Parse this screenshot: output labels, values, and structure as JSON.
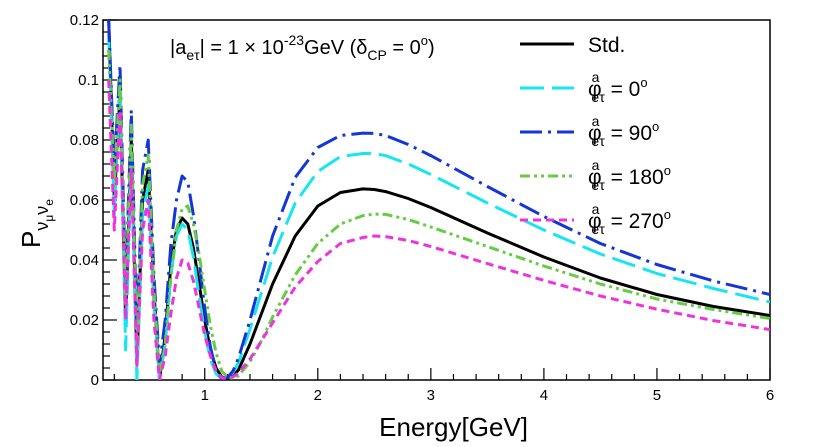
{
  "chart_data": {
    "type": "line",
    "title": "",
    "annotation": {
      "text": "|a",
      "sub1": "eτ",
      "mid": "| = 1 × 10",
      "sup": "-23",
      "unit": "GeV (δ",
      "sub2": "CP",
      "tail": " = 0",
      "deg": "o",
      "close": ")"
    },
    "xlabel": "Energy[GeV]",
    "ylabel": {
      "base": "P",
      "sub1": "ν",
      "subsub1": "μ",
      "sub2": "ν",
      "subsub2": "e"
    },
    "xlim": [
      0.1,
      6
    ],
    "ylim": [
      0,
      0.12
    ],
    "xticks": [
      1,
      2,
      3,
      4,
      5,
      6
    ],
    "xtick_labels": [
      "1",
      "2",
      "3",
      "4",
      "5",
      "6"
    ],
    "yticks": [
      0,
      0.02,
      0.04,
      0.06,
      0.08,
      0.1,
      0.12
    ],
    "ytick_labels": [
      "0",
      "0.02",
      "0.04",
      "0.06",
      "0.08",
      "0.1",
      "0.12"
    ],
    "legend_position": "top-right",
    "series": [
      {
        "name": "Std.",
        "legend_base": "Std.",
        "legend_sup": "",
        "legend_sub": "",
        "legend_value": "",
        "legend_deg": "",
        "color": "#000000",
        "dash": "",
        "x": [
          0.15,
          0.2,
          0.25,
          0.3,
          0.35,
          0.4,
          0.45,
          0.5,
          0.55,
          0.6,
          0.65,
          0.7,
          0.75,
          0.8,
          0.85,
          0.9,
          0.95,
          1.0,
          1.05,
          1.1,
          1.15,
          1.2,
          1.25,
          1.3,
          1.4,
          1.5,
          1.6,
          1.8,
          2.0,
          2.2,
          2.4,
          2.5,
          2.6,
          2.8,
          3.0,
          3.5,
          4.0,
          4.5,
          5.0,
          5.5,
          6.0
        ],
        "y": [
          0.12,
          0.06,
          0.095,
          0.02,
          0.08,
          0.005,
          0.06,
          0.07,
          0.03,
          0.0,
          0.015,
          0.038,
          0.05,
          0.054,
          0.052,
          0.044,
          0.032,
          0.02,
          0.01,
          0.004,
          0.001,
          0.0005,
          0.0012,
          0.0035,
          0.012,
          0.022,
          0.032,
          0.048,
          0.058,
          0.0625,
          0.0637,
          0.0635,
          0.0628,
          0.0605,
          0.0575,
          0.049,
          0.041,
          0.034,
          0.0285,
          0.0245,
          0.0215
        ]
      },
      {
        "name": "phi0",
        "legend_base": "φ",
        "legend_sup": "a",
        "legend_sub": "eτ",
        "legend_value": " = 0",
        "legend_deg": "o",
        "color": "#17e6f0",
        "dash": "24,8",
        "x": [
          0.15,
          0.2,
          0.25,
          0.3,
          0.35,
          0.4,
          0.45,
          0.5,
          0.55,
          0.6,
          0.65,
          0.7,
          0.75,
          0.8,
          0.85,
          0.9,
          0.95,
          1.0,
          1.05,
          1.1,
          1.15,
          1.2,
          1.25,
          1.3,
          1.4,
          1.5,
          1.6,
          1.8,
          2.0,
          2.2,
          2.4,
          2.5,
          2.6,
          2.8,
          3.0,
          3.5,
          4.0,
          4.5,
          5.0,
          5.5,
          6.0
        ],
        "y": [
          0.115,
          0.055,
          0.1,
          0.01,
          0.075,
          0.0,
          0.055,
          0.065,
          0.025,
          0.0,
          0.012,
          0.035,
          0.048,
          0.052,
          0.05,
          0.041,
          0.028,
          0.016,
          0.007,
          0.002,
          0.0005,
          0.0008,
          0.0025,
          0.006,
          0.017,
          0.029,
          0.041,
          0.059,
          0.0695,
          0.0745,
          0.0755,
          0.0755,
          0.0748,
          0.072,
          0.0685,
          0.059,
          0.05,
          0.042,
          0.0355,
          0.0305,
          0.026
        ]
      },
      {
        "name": "phi90",
        "legend_base": "φ",
        "legend_sup": "a",
        "legend_sub": "eτ",
        "legend_value": " = 90",
        "legend_deg": "o",
        "color": "#1536d6",
        "dash": "22,6,3,6",
        "x": [
          0.15,
          0.2,
          0.25,
          0.3,
          0.35,
          0.4,
          0.45,
          0.5,
          0.55,
          0.6,
          0.65,
          0.7,
          0.75,
          0.8,
          0.85,
          0.9,
          0.95,
          1.0,
          1.05,
          1.1,
          1.15,
          1.2,
          1.25,
          1.3,
          1.4,
          1.5,
          1.6,
          1.8,
          2.0,
          2.2,
          2.4,
          2.5,
          2.6,
          2.8,
          3.0,
          3.5,
          4.0,
          4.5,
          5.0,
          5.5,
          6.0
        ],
        "y": [
          0.12,
          0.07,
          0.105,
          0.03,
          0.09,
          0.015,
          0.07,
          0.08,
          0.035,
          0.005,
          0.02,
          0.045,
          0.06,
          0.068,
          0.066,
          0.055,
          0.04,
          0.024,
          0.011,
          0.003,
          0.0005,
          0.0008,
          0.003,
          0.0075,
          0.02,
          0.034,
          0.048,
          0.0675,
          0.0775,
          0.0815,
          0.0823,
          0.0822,
          0.0815,
          0.0785,
          0.0748,
          0.0645,
          0.0545,
          0.0455,
          0.0385,
          0.033,
          0.0285
        ]
      },
      {
        "name": "phi180",
        "legend_base": "φ",
        "legend_sup": "a",
        "legend_sub": "eτ",
        "legend_value": " = 180",
        "legend_deg": "o",
        "color": "#66cc44",
        "dash": "10,4,3,4,3,4",
        "x": [
          0.15,
          0.2,
          0.25,
          0.3,
          0.35,
          0.4,
          0.45,
          0.5,
          0.55,
          0.6,
          0.65,
          0.7,
          0.75,
          0.8,
          0.85,
          0.9,
          0.95,
          1.0,
          1.05,
          1.1,
          1.15,
          1.2,
          1.25,
          1.3,
          1.4,
          1.5,
          1.6,
          1.8,
          2.0,
          2.2,
          2.4,
          2.5,
          2.6,
          2.8,
          3.0,
          3.5,
          4.0,
          4.5,
          5.0,
          5.5,
          6.0
        ],
        "y": [
          0.11,
          0.065,
          0.1,
          0.025,
          0.085,
          0.01,
          0.065,
          0.075,
          0.03,
          0.002,
          0.012,
          0.034,
          0.05,
          0.057,
          0.058,
          0.052,
          0.042,
          0.03,
          0.018,
          0.009,
          0.003,
          0.001,
          0.0005,
          0.0015,
          0.006,
          0.013,
          0.021,
          0.035,
          0.0455,
          0.052,
          0.0548,
          0.0553,
          0.0552,
          0.0535,
          0.051,
          0.0445,
          0.038,
          0.032,
          0.027,
          0.0235,
          0.0205
        ]
      },
      {
        "name": "phi270",
        "legend_base": "φ",
        "legend_sup": "a",
        "legend_sub": "eτ",
        "legend_value": " = 270",
        "legend_deg": "o",
        "color": "#ee33dd",
        "dash": "8,5",
        "x": [
          0.15,
          0.2,
          0.25,
          0.3,
          0.35,
          0.4,
          0.45,
          0.5,
          0.55,
          0.6,
          0.65,
          0.7,
          0.75,
          0.8,
          0.85,
          0.9,
          0.95,
          1.0,
          1.05,
          1.1,
          1.15,
          1.2,
          1.25,
          1.3,
          1.4,
          1.5,
          1.6,
          1.8,
          2.0,
          2.2,
          2.4,
          2.5,
          2.6,
          2.8,
          3.0,
          3.5,
          4.0,
          4.5,
          5.0,
          5.5,
          6.0
        ],
        "y": [
          0.1,
          0.05,
          0.09,
          0.02,
          0.07,
          0.005,
          0.05,
          0.06,
          0.02,
          0.0,
          0.008,
          0.022,
          0.034,
          0.04,
          0.039,
          0.033,
          0.024,
          0.015,
          0.008,
          0.003,
          0.0008,
          0.0005,
          0.001,
          0.0025,
          0.007,
          0.013,
          0.019,
          0.031,
          0.0395,
          0.0455,
          0.0475,
          0.048,
          0.0478,
          0.0465,
          0.0445,
          0.0388,
          0.0332,
          0.028,
          0.0236,
          0.0198,
          0.0168
        ]
      }
    ]
  }
}
